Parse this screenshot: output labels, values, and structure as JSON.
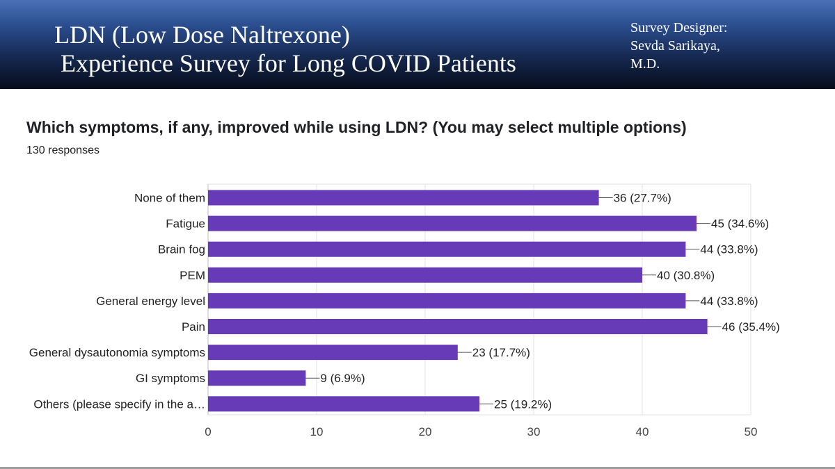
{
  "slide": {
    "title": "LDN (Low Dose Naltrexone)\n Experience Survey for Long COVID Patients",
    "designer": "Survey Designer:\nSevda Sarikaya,\nM.D."
  },
  "question": {
    "text": "Which symptoms, if any, improved while using LDN? (You may select multiple options)",
    "responses": "130 responses"
  },
  "colors": {
    "bar": "#673ab7",
    "grid": "#e0e0e0",
    "banner_top": "#4a70b8",
    "banner_bottom": "#070c1a"
  },
  "chart_data": {
    "type": "bar",
    "orientation": "horizontal",
    "categories": [
      "None of them",
      "Fatigue",
      "Brain fog",
      "PEM",
      "General energy level",
      "Pain",
      "General dysautonomia symptoms",
      "GI symptoms",
      "Others (please specify in the a…"
    ],
    "values": [
      36,
      45,
      44,
      40,
      44,
      46,
      23,
      9,
      25
    ],
    "data_labels": [
      "36 (27.7%)",
      "45 (34.6%)",
      "44 (33.8%)",
      "40 (30.8%)",
      "44 (33.8%)",
      "46 (35.4%)",
      "23 (17.7%)",
      "9 (6.9%)",
      "25 (19.2%)"
    ],
    "xlim": [
      0,
      50
    ],
    "xticks": [
      0,
      10,
      20,
      30,
      40,
      50
    ],
    "grid": true,
    "legend": "none"
  }
}
